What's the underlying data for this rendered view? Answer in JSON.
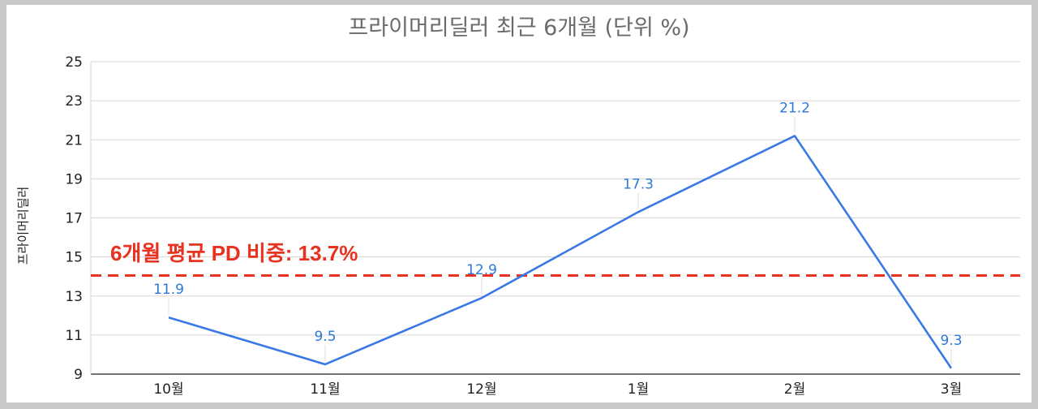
{
  "chart_data": {
    "type": "line",
    "title": "프라이머리딜러 최근 6개월 (단위 %)",
    "xlabel": "",
    "ylabel": "프라이머리딜러",
    "categories": [
      "10월",
      "11월",
      "12월",
      "1월",
      "2월",
      "3월"
    ],
    "series": [
      {
        "values": [
          11.9,
          9.5,
          12.9,
          17.3,
          21.2,
          9.3
        ],
        "color": "#3b78e7"
      }
    ],
    "data_labels": [
      "11.9",
      "9.5",
      "12.9",
      "17.3",
      "21.2",
      "9.3"
    ],
    "ylim": [
      9,
      25
    ],
    "yticks": [
      9,
      11,
      13,
      15,
      17,
      19,
      21,
      23,
      25
    ],
    "grid": true,
    "reference_line": {
      "value": 14.05,
      "color": "#e8321f",
      "style": "dashed"
    },
    "annotation": "6개월  평균 PD 비중: 13.7%"
  }
}
